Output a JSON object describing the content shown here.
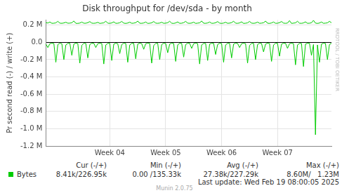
{
  "chart_data": {
    "type": "line",
    "title": "Disk throughput for /dev/sda - by month",
    "y_label": "Pr second read (-) / write (+)",
    "side_text": "RRDTOOL / TOBI OETIKER",
    "footer": "Munin 2.0.75",
    "last_update": "Last update: Wed Feb 19 08:00:05 2025",
    "stats": {
      "columns": [
        "Cur (-/+)",
        "Min (-/+)",
        "Avg (-/+)",
        "Max (-/+)"
      ],
      "values": [
        "8.41k/226.95k",
        "0.00 /135.33k",
        "27.38k/227.29k",
        "8.60M/   1.23M"
      ]
    },
    "grid": true,
    "legend": "bottom",
    "ylim": [
      -1200000,
      260000
    ],
    "yticks": [
      {
        "value": 200000,
        "label": "0.2 M"
      },
      {
        "value": 0,
        "label": "0.0"
      },
      {
        "value": -200000,
        "label": "-0.2 M"
      },
      {
        "value": -400000,
        "label": "-0.4 M"
      },
      {
        "value": -600000,
        "label": "-0.6 M"
      },
      {
        "value": -800000,
        "label": "-0.8 M"
      },
      {
        "value": -1000000,
        "label": "-1.0 M"
      },
      {
        "value": -1200000,
        "label": "-1.2 M"
      }
    ],
    "categories": [
      null,
      null,
      null,
      null,
      null,
      null,
      null,
      null,
      null,
      null,
      null,
      null,
      null,
      null,
      null,
      null,
      null,
      null,
      null,
      null,
      null,
      null,
      null,
      null,
      null,
      null,
      null,
      null,
      null,
      null,
      null,
      null,
      "Week 04",
      null,
      null,
      null,
      null,
      null,
      null,
      null,
      null,
      null,
      null,
      null,
      null,
      null,
      null,
      null,
      null,
      null,
      null,
      null,
      null,
      null,
      null,
      null,
      null,
      null,
      null,
      null,
      "Week 05",
      null,
      null,
      null,
      null,
      null,
      null,
      null,
      null,
      null,
      null,
      null,
      null,
      null,
      null,
      null,
      null,
      null,
      null,
      null,
      null,
      null,
      null,
      null,
      null,
      null,
      null,
      null,
      "Week 06",
      null,
      null,
      null,
      null,
      null,
      null,
      null,
      null,
      null,
      null,
      null,
      null,
      null,
      null,
      null,
      null,
      null,
      null,
      null,
      null,
      null,
      null,
      null,
      null,
      null,
      null,
      null,
      "Week 07",
      null,
      null,
      null,
      null,
      null,
      null,
      null,
      null,
      null,
      null,
      null,
      null,
      null,
      null,
      null,
      null,
      null,
      null,
      null,
      null,
      null,
      null,
      null,
      null,
      null,
      null,
      null
    ],
    "series": [
      {
        "name": "Bytes",
        "color": "#00cc00",
        "values": [
          228000,
          224000,
          236000,
          221000,
          222000,
          226000,
          244000,
          223000,
          221000,
          225000,
          233000,
          222000,
          223000,
          227000,
          248000,
          221000,
          220000,
          224000,
          235000,
          222000,
          222000,
          228000,
          241000,
          223000,
          221000,
          224000,
          232000,
          220000,
          223000,
          226000,
          246000,
          222000,
          221000,
          225000,
          238000,
          221000,
          222000,
          227000,
          243000,
          223000,
          220000,
          224000,
          234000,
          221000,
          223000,
          228000,
          247000,
          222000,
          221000,
          225000,
          236000,
          220000,
          222000,
          226000,
          242000,
          223000,
          221000,
          224000,
          233000,
          221000,
          223000,
          227000,
          245000,
          222000,
          220000,
          225000,
          237000,
          221000,
          222000,
          228000,
          244000,
          223000,
          221000,
          224000,
          234000,
          220000,
          223000,
          226000,
          248000,
          222000,
          221000,
          225000,
          236000,
          221000,
          222000,
          227000,
          241000,
          223000,
          220000,
          224000,
          233000,
          221000,
          223000,
          228000,
          246000,
          222000,
          221000,
          225000,
          238000,
          220000,
          222000,
          226000,
          243000,
          223000,
          221000,
          224000,
          235000,
          221000,
          223000,
          227000,
          247000,
          222000,
          220000,
          225000,
          236000,
          221000,
          222000,
          228000,
          242000,
          223000,
          221000,
          224000,
          252000,
          220000,
          223000,
          226000,
          245000,
          222000,
          221000,
          225000,
          238000,
          221000,
          222000,
          227000,
          255000,
          223000,
          220000,
          224000,
          236000,
          221000,
          223000,
          226000,
          244000,
          227000
        ],
        "read_values": [
          -20000,
          -60000,
          -15000,
          -10000,
          -12000,
          -230000,
          -25000,
          -10000,
          -15000,
          -200000,
          -30000,
          -12000,
          -10000,
          -150000,
          -20000,
          -8000,
          -14000,
          -240000,
          -35000,
          -10000,
          -12000,
          -180000,
          -25000,
          -9000,
          -10000,
          -60000,
          -15000,
          -10000,
          -13000,
          -250000,
          -30000,
          -12000,
          -11000,
          -210000,
          -20000,
          -10000,
          -15000,
          -130000,
          -25000,
          -10000,
          -12000,
          -230000,
          -30000,
          -11000,
          -10000,
          -190000,
          -20000,
          -9000,
          -14000,
          -80000,
          -15000,
          -10000,
          -12000,
          -240000,
          -35000,
          -12000,
          -10000,
          -200000,
          -25000,
          -10000,
          -13000,
          -120000,
          -20000,
          -9000,
          -12000,
          -220000,
          -30000,
          -10000,
          -11000,
          -170000,
          -25000,
          -10000,
          -10000,
          -70000,
          -15000,
          -9000,
          -14000,
          -250000,
          -30000,
          -12000,
          -12000,
          -210000,
          -20000,
          -10000,
          -10000,
          -140000,
          -25000,
          -10000,
          -13000,
          -230000,
          -30000,
          -11000,
          -11000,
          -180000,
          -20000,
          -9000,
          -12000,
          -60000,
          -15000,
          -10000,
          -14000,
          -240000,
          -35000,
          -12000,
          -10000,
          -200000,
          -25000,
          -10000,
          -12000,
          -110000,
          -20000,
          -9000,
          -13000,
          -220000,
          -30000,
          -10000,
          -11000,
          -160000,
          -20000,
          -10000,
          -10000,
          -70000,
          -15000,
          -9000,
          -14000,
          -260000,
          -30000,
          -12000,
          -12000,
          -280000,
          -20000,
          -10000,
          -10000,
          -150000,
          -25000,
          -1070000,
          -30000,
          -230000,
          -20000,
          -10000,
          -12000,
          -200000,
          -25000,
          -10000
        ]
      }
    ]
  }
}
